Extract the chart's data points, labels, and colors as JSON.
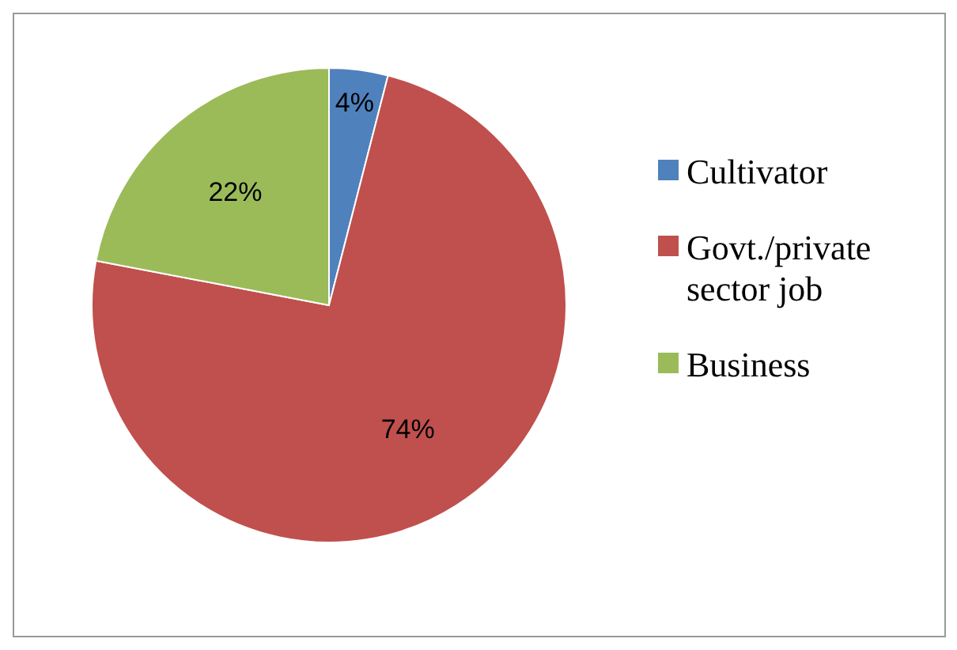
{
  "chart_data": {
    "type": "pie",
    "categories": [
      "Cultivator",
      "Govt./private sector job",
      "Business"
    ],
    "values": [
      4,
      74,
      22
    ],
    "colors": [
      "#4f81bd",
      "#c0504d",
      "#9bbb59"
    ],
    "value_labels": [
      "4%",
      "74%",
      "22%"
    ],
    "legend": "right"
  }
}
